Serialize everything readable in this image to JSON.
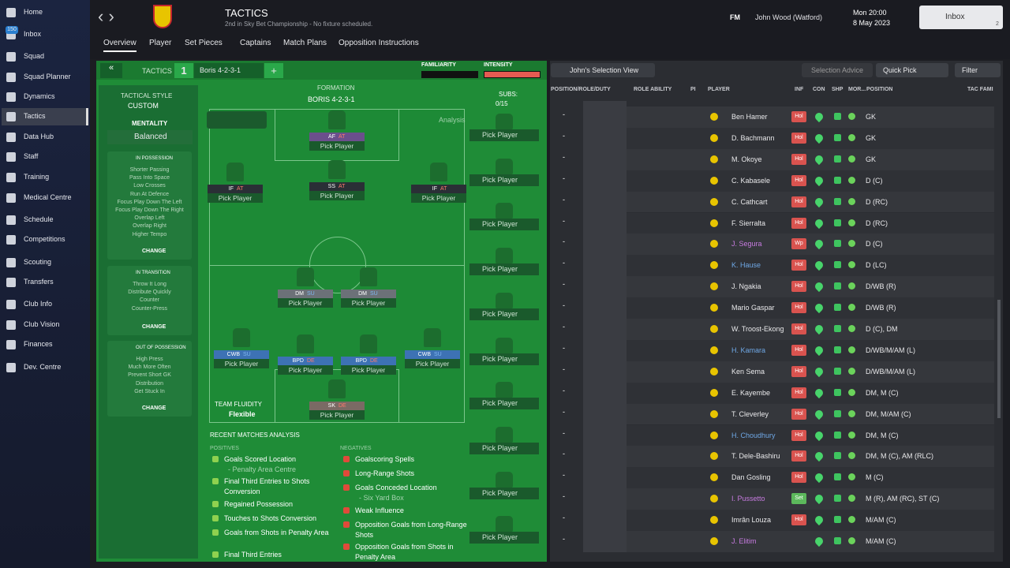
{
  "sidebar": {
    "items": [
      "Home",
      "Inbox",
      "Squad",
      "Squad Planner",
      "Dynamics",
      "Tactics",
      "Data Hub",
      "Staff",
      "Training",
      "Medical Centre",
      "Schedule",
      "Competitions",
      "Scouting",
      "Transfers",
      "Club Info",
      "Club Vision",
      "Finances",
      "Dev. Centre"
    ],
    "inbox_badge": "150"
  },
  "header": {
    "title": "TACTICS",
    "subtitle": "2nd in Sky Bet Championship - No fixture scheduled.",
    "logo_text": "FM",
    "manager": "John Wood (Watford)",
    "time": "Mon 20:00",
    "date": "8 May 2023",
    "inbox": "Inbox",
    "inbox_count": "2"
  },
  "tabs": [
    "Overview",
    "Player",
    "Set Pieces",
    "Captains",
    "Match Plans",
    "Opposition Instructions"
  ],
  "toolbar": {
    "label": "TACTICS",
    "slot": "1",
    "tactic": "Boris 4-2-3-1",
    "familiarity": "FAMILIARITY",
    "intensity": "INTENSITY"
  },
  "style_panel": {
    "title": "TACTICAL STYLE",
    "style": "CUSTOM",
    "mentality_label": "MENTALITY",
    "mentality": "Balanced",
    "sections": [
      {
        "title": "IN POSSESSION",
        "items": [
          "Shorter Passing",
          "Pass Into Space",
          "Low Crosses",
          "Run At Defence",
          "Focus Play Down The Left",
          "Focus Play Down The Right",
          "Overlap Left",
          "Overlap Right",
          "Higher Tempo"
        ],
        "action": "CHANGE"
      },
      {
        "title": "IN TRANSITION",
        "items": [
          "Throw It Long",
          "Distribute Quickly",
          "Counter",
          "Counter-Press"
        ],
        "action": "CHANGE"
      },
      {
        "title": "OUT OF POSSESSION",
        "items": [
          "High Press",
          "Much More Often",
          "Prevent Short GK",
          "Distribution",
          "Get Stuck In"
        ],
        "action": "CHANGE"
      }
    ]
  },
  "formation": {
    "label": "FORMATION",
    "name": "BORIS 4-2-3-1",
    "subs_label": "SUBS:",
    "subs": "0/15",
    "analysis": "Analysis",
    "fluidity_label": "TEAM FLUIDITY",
    "fluidity": "Flexible",
    "positions": [
      {
        "role": "AF",
        "duty": "AT",
        "player": "Pick Player",
        "color": "#6b4f8c"
      },
      {
        "role": "IF",
        "duty": "AT",
        "player": "Pick Player",
        "color": "#2a2f36"
      },
      {
        "role": "SS",
        "duty": "AT",
        "player": "Pick Player",
        "color": "#2a2f36"
      },
      {
        "role": "IF",
        "duty": "AT",
        "player": "Pick Player",
        "color": "#2a2f36"
      },
      {
        "role": "DM",
        "duty": "SU",
        "player": "Pick Player",
        "color": "#6c7178"
      },
      {
        "role": "DM",
        "duty": "SU",
        "player": "Pick Player",
        "color": "#6c7178"
      },
      {
        "role": "CWB",
        "duty": "SU",
        "player": "Pick Player",
        "color": "#3d72b4"
      },
      {
        "role": "BPD",
        "duty": "DE",
        "player": "Pick Player",
        "color": "#3d72b4"
      },
      {
        "role": "BPD",
        "duty": "DE",
        "player": "Pick Player",
        "color": "#3d72b4"
      },
      {
        "role": "CWB",
        "duty": "SU",
        "player": "Pick Player",
        "color": "#3d72b4"
      },
      {
        "role": "SK",
        "duty": "DE",
        "player": "Pick Player",
        "color": "#7a6a64"
      }
    ],
    "subs_slots": [
      "Pick Player",
      "Pick Player",
      "Pick Player",
      "Pick Player",
      "Pick Player",
      "Pick Player",
      "Pick Player",
      "Pick Player",
      "Pick Player",
      "Pick Player"
    ]
  },
  "analysis": {
    "title": "RECENT MATCHES ANALYSIS",
    "positives_label": "POSITIVES",
    "positives": [
      {
        "text": "Goals Scored Location",
        "detail": "- Penalty Area Centre"
      },
      {
        "text": "Final Third Entries to Shots Conversion"
      },
      {
        "text": "Regained Possession"
      },
      {
        "text": "Touches to Shots Conversion"
      },
      {
        "text": "Goals from Shots in Penalty Area"
      },
      {
        "text": "Final Third Entries"
      }
    ],
    "negatives_label": "NEGATIVES",
    "negatives": [
      {
        "text": "Goalscoring Spells"
      },
      {
        "text": "Long-Range Shots"
      },
      {
        "text": "Goals Conceded Location",
        "detail": "- Six Yard Box"
      },
      {
        "text": "Weak Influence"
      },
      {
        "text": "Opposition Goals from Long-Range Shots"
      },
      {
        "text": "Opposition Goals from Shots in Penalty Area"
      }
    ]
  },
  "selection": {
    "view": "John's Selection View",
    "advice": "Selection Advice",
    "quick_pick": "Quick Pick",
    "filter": "Filter",
    "columns": [
      "POSITION/ROLE/DUTY",
      "ROLE ABILITY",
      "PI",
      "PLAYER",
      "INF",
      "CON",
      "SHP",
      "MOR...",
      "POSITION",
      "TAC FAMI"
    ],
    "rows": [
      {
        "role": "-",
        "name": "Ben Hamer",
        "inf": "Hol",
        "position": "GK"
      },
      {
        "role": "-",
        "name": "D. Bachmann",
        "inf": "Hol",
        "position": "GK"
      },
      {
        "role": "-",
        "name": "M. Okoye",
        "inf": "Hol",
        "position": "GK"
      },
      {
        "role": "-",
        "name": "C. Kabasele",
        "inf": "Hol",
        "position": "D (C)"
      },
      {
        "role": "-",
        "name": "C. Cathcart",
        "inf": "Hol",
        "position": "D (RC)"
      },
      {
        "role": "-",
        "name": "F. Sierralta",
        "inf": "Hol",
        "position": "D (RC)"
      },
      {
        "role": "-",
        "name": "J. Segura",
        "inf": "Wp",
        "position": "D (C)",
        "name_color": "#c77be0"
      },
      {
        "role": "-",
        "name": "K. Hause",
        "inf": "Hol",
        "position": "D (LC)",
        "name_color": "#6fa8e6"
      },
      {
        "role": "-",
        "name": "J. Ngakia",
        "inf": "Hol",
        "position": "D/WB (R)"
      },
      {
        "role": "-",
        "name": "Mario Gaspar",
        "inf": "Hol",
        "position": "D/WB (R)"
      },
      {
        "role": "-",
        "name": "W. Troost-Ekong",
        "inf": "Hol",
        "position": "D (C), DM"
      },
      {
        "role": "-",
        "name": "H. Kamara",
        "inf": "Hol",
        "position": "D/WB/M/AM (L)",
        "name_color": "#6fa8e6"
      },
      {
        "role": "-",
        "name": "Ken Sema",
        "inf": "Hol",
        "position": "D/WB/M/AM (L)"
      },
      {
        "role": "-",
        "name": "E. Kayembe",
        "inf": "Hol",
        "position": "DM, M (C)"
      },
      {
        "role": "-",
        "name": "T. Cleverley",
        "inf": "Hol",
        "position": "DM, M/AM (C)"
      },
      {
        "role": "-",
        "name": "H. Choudhury",
        "inf": "Hol",
        "position": "DM, M (C)",
        "name_color": "#6fa8e6"
      },
      {
        "role": "-",
        "name": "T. Dele-Bashiru",
        "inf": "Hol",
        "position": "DM, M (C), AM (RLC)"
      },
      {
        "role": "-",
        "name": "Dan Gosling",
        "inf": "Hol",
        "position": "M (C)"
      },
      {
        "role": "-",
        "name": "I. Pussetto",
        "inf": "Set",
        "position": "M (R), AM (RC), ST (C)",
        "name_color": "#c77be0"
      },
      {
        "role": "-",
        "name": "Imrân Louza",
        "inf": "Hol",
        "position": "M/AM (C)"
      },
      {
        "role": "-",
        "name": "J. Elitim",
        "position": "M/AM (C)",
        "name_color": "#c77be0"
      }
    ]
  }
}
